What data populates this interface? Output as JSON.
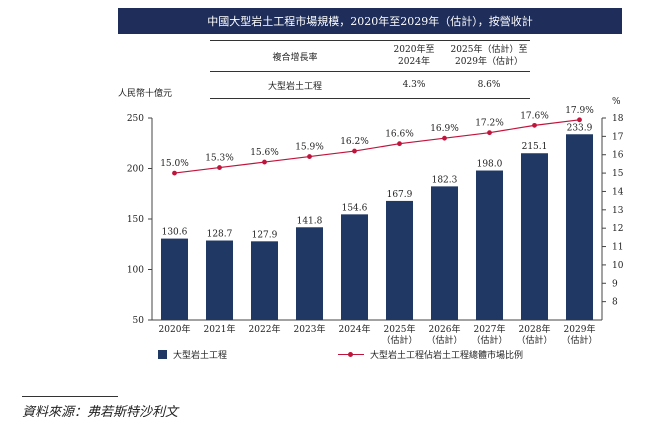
{
  "title": "中國大型岩土工程市場規模，2020年至2029年（估計），按營收計",
  "cagr_table": {
    "header": "複合增長率",
    "col1": [
      "2020年至",
      "2024年"
    ],
    "col2": [
      "2025年（估計）至",
      "2029年（估計）"
    ],
    "rows": [
      {
        "label": "大型岩土工程",
        "v1": "4.3%",
        "v2": "8.6%"
      }
    ]
  },
  "legend": {
    "bar": "大型岩土工程",
    "line": "大型岩土工程佔岩土工程總體市場比例"
  },
  "source": "資料來源：弗若斯特沙利文",
  "colors": {
    "bar": "#1f3864",
    "line": "#c0143c",
    "title_bg": "#1e2d5a"
  },
  "chart_data": {
    "type": "bar",
    "categories": [
      [
        "2020年"
      ],
      [
        "2021年"
      ],
      [
        "2022年"
      ],
      [
        "2023年"
      ],
      [
        "2024年"
      ],
      [
        "2025年",
        "（估計）"
      ],
      [
        "2026年",
        "（估計）"
      ],
      [
        "2027年",
        "（估計）"
      ],
      [
        "2028年",
        "（估計）"
      ],
      [
        "2029年",
        "（估計）"
      ]
    ],
    "ylabel": "人民幣十億元",
    "y2label": "%",
    "ylim": [
      50,
      250
    ],
    "yticks": [
      50,
      100,
      150,
      200,
      250
    ],
    "y2lim": [
      7,
      18
    ],
    "y2ticks": [
      8,
      9,
      10,
      11,
      12,
      13,
      14,
      15,
      16,
      17,
      18
    ],
    "bars": {
      "name": "大型岩土工程",
      "values": [
        130.6,
        128.7,
        127.9,
        141.8,
        154.6,
        167.9,
        182.3,
        198.0,
        215.1,
        233.9
      ],
      "labels": [
        "130.6",
        "128.7",
        "127.9",
        "141.8",
        "154.6",
        "167.9",
        "182.3",
        "198.0",
        "215.1",
        "233.9"
      ]
    },
    "line": {
      "name": "大型岩土工程佔岩土工程總體市場比例",
      "values": [
        15.0,
        15.3,
        15.6,
        15.9,
        16.2,
        16.6,
        16.9,
        17.2,
        17.6,
        17.9
      ],
      "labels": [
        "15.0%",
        "15.3%",
        "15.6%",
        "15.9%",
        "16.2%",
        "16.6%",
        "16.9%",
        "17.2%",
        "17.6%",
        "17.9%"
      ]
    },
    "grid": false,
    "legend_position": "bottom"
  }
}
